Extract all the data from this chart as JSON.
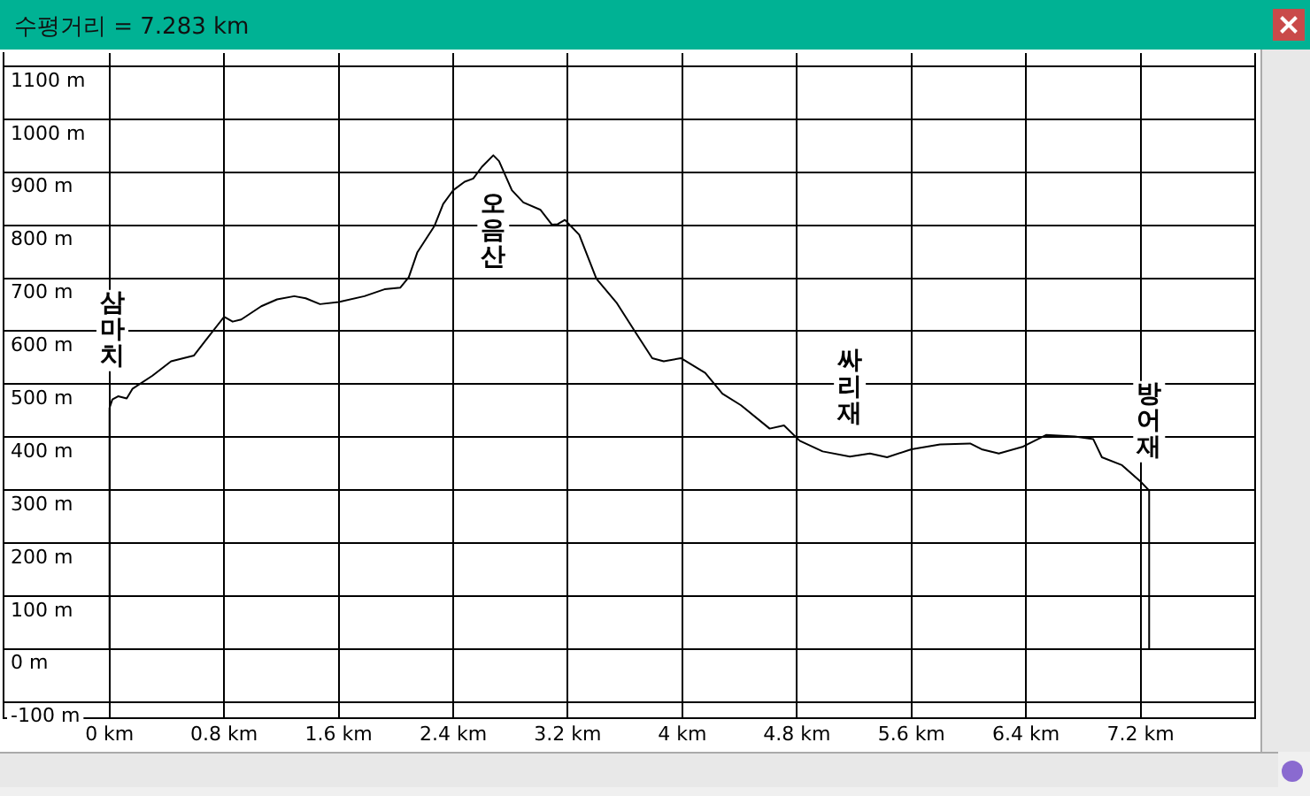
{
  "chart_data": {
    "type": "line",
    "title": "수평거리 = 7.283 km",
    "x": [
      0,
      0,
      0.02,
      0.06,
      0.12,
      0.16,
      0.3,
      0.43,
      0.59,
      0.67,
      0.8,
      0.86,
      0.92,
      1.06,
      1.17,
      1.29,
      1.37,
      1.47,
      1.6,
      1.78,
      1.92,
      2.03,
      2.09,
      2.15,
      2.27,
      2.33,
      2.4,
      2.48,
      2.54,
      2.6,
      2.68,
      2.72,
      2.81,
      2.89,
      3.01,
      3.09,
      3.13,
      3.18,
      3.28,
      3.4,
      3.54,
      3.67,
      3.79,
      3.87,
      3.99,
      4.16,
      4.28,
      4.41,
      4.61,
      4.71,
      4.82,
      4.98,
      5.17,
      5.31,
      5.43,
      5.6,
      5.8,
      6.01,
      6.09,
      6.21,
      6.38,
      6.54,
      6.74,
      6.87,
      6.93,
      7.07,
      7.2,
      7.26,
      7.26
    ],
    "values": [
      0,
      455,
      471,
      477,
      473,
      491,
      516,
      543,
      554,
      582,
      627,
      618,
      622,
      647,
      660,
      666,
      662,
      651,
      655,
      666,
      679,
      682,
      702,
      749,
      799,
      840,
      866,
      882,
      888,
      910,
      932,
      921,
      866,
      843,
      829,
      801,
      802,
      810,
      782,
      699,
      654,
      599,
      549,
      543,
      549,
      521,
      482,
      460,
      416,
      422,
      393,
      373,
      363,
      369,
      362,
      377,
      386,
      388,
      377,
      369,
      382,
      404,
      401,
      396,
      362,
      347,
      316,
      299,
      0
    ],
    "color": "#000000",
    "marker": "none",
    "legend": false,
    "grid": true,
    "xlim": [
      -0.74,
      8
    ],
    "xticks": [
      {
        "value": 0,
        "label": "0 km"
      },
      {
        "value": 0.8,
        "label": "0.8 km"
      },
      {
        "value": 1.6,
        "label": "1.6 km"
      },
      {
        "value": 2.4,
        "label": "2.4 km"
      },
      {
        "value": 3.2,
        "label": "3.2 km"
      },
      {
        "value": 4,
        "label": "4 km"
      },
      {
        "value": 4.8,
        "label": "4.8 km"
      },
      {
        "value": 5.6,
        "label": "5.6 km"
      },
      {
        "value": 6.4,
        "label": "6.4 km"
      },
      {
        "value": 7.2,
        "label": "7.2 km"
      },
      {
        "value": 8,
        "label": null
      }
    ],
    "ylim": [
      -130,
      1125
    ],
    "yticks": [
      {
        "value": -100,
        "label": "-100 m"
      },
      {
        "value": 0,
        "label": "0 m"
      },
      {
        "value": 100,
        "label": "100 m"
      },
      {
        "value": 200,
        "label": "200 m"
      },
      {
        "value": 300,
        "label": "300 m"
      },
      {
        "value": 400,
        "label": "400 m"
      },
      {
        "value": 500,
        "label": "500 m"
      },
      {
        "value": 600,
        "label": "600 m"
      },
      {
        "value": 700,
        "label": "700 m"
      },
      {
        "value": 800,
        "label": "800 m"
      },
      {
        "value": 900,
        "label": "900 m"
      },
      {
        "value": 1000,
        "label": "1000 m"
      },
      {
        "value": 1100,
        "label": "1100 m"
      }
    ],
    "annotations": [
      {
        "text": "삼마치",
        "x": 0.02,
        "y": 471
      },
      {
        "text": "오음산",
        "x": 2.68,
        "y": 932
      },
      {
        "text": "싸리재",
        "x": 5.17,
        "y": 363
      },
      {
        "text": "방어재",
        "x": 7.26,
        "y": 299
      }
    ]
  }
}
